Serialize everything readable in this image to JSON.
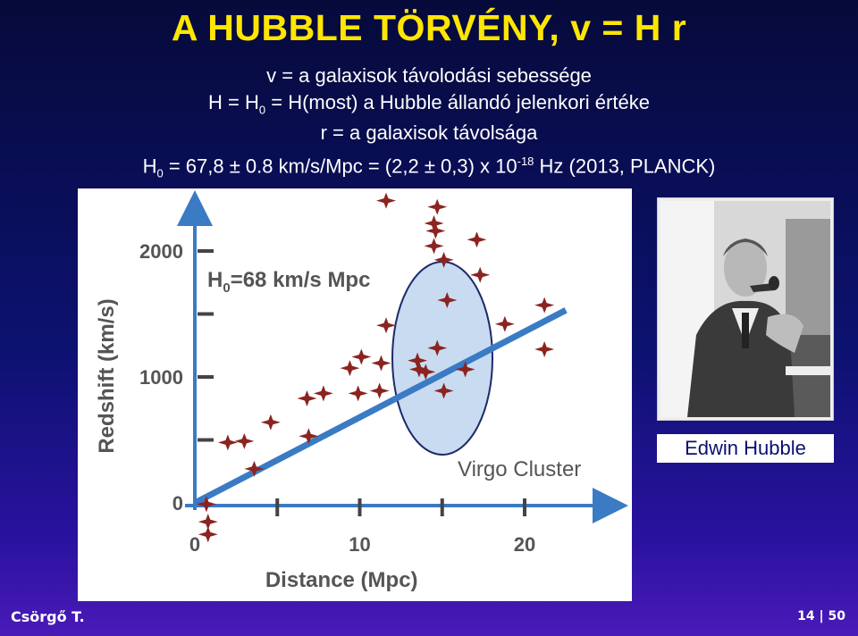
{
  "slide": {
    "title": "A HUBBLE TÖRVÉNY, v = H r",
    "line1": "v = a galaxisok távolodási sebessége",
    "line2": {
      "pre": "H = H",
      "sub": "0",
      "post": " = H(most) a Hubble állandó jelenkori értéke"
    },
    "line3": "r = a galaxisok távolsága",
    "line4": {
      "pre": "H",
      "sub": "0",
      "mid": " = 67,8 ± 0.8 km/s/Mpc = (2,2 ± 0,3) x 10",
      "sup": "-18",
      "post": " Hz  (2013, PLANCK)"
    },
    "photo_caption": "Edwin Hubble",
    "author": "Csörgő T.",
    "page": "14 | 50"
  },
  "colors": {
    "title": "#ffe600",
    "fit_line": "#3a7bc4",
    "points": "#8b2420",
    "cluster_fill": "#c9dbf0",
    "axis": "#555555",
    "text": "#555555"
  },
  "chart_data": {
    "type": "scatter",
    "xlabel": "Distance (Mpc)",
    "ylabel": "Redshift (km/s)",
    "x_tick_labels": [
      "0",
      "10",
      "20"
    ],
    "y_tick_labels": [
      "0",
      "1000",
      "2000"
    ],
    "xlim": [
      0,
      23
    ],
    "ylim": [
      0,
      2300
    ],
    "annotation": {
      "main": "H",
      "sub": "0",
      "rest": "=68 km/s Mpc"
    },
    "cluster_label": "Virgo Cluster",
    "fit_line": {
      "slope": 68,
      "x_range": [
        0,
        22.5
      ]
    },
    "points": [
      {
        "x": 0.7,
        "y": -10
      },
      {
        "x": 0.8,
        "y": -150
      },
      {
        "x": 0.8,
        "y": -250
      },
      {
        "x": 2.0,
        "y": 480
      },
      {
        "x": 3.0,
        "y": 490
      },
      {
        "x": 3.6,
        "y": 270
      },
      {
        "x": 4.6,
        "y": 640
      },
      {
        "x": 6.8,
        "y": 830
      },
      {
        "x": 6.9,
        "y": 530
      },
      {
        "x": 7.8,
        "y": 870
      },
      {
        "x": 9.4,
        "y": 1070
      },
      {
        "x": 10.1,
        "y": 1160
      },
      {
        "x": 9.9,
        "y": 870
      },
      {
        "x": 11.3,
        "y": 1110
      },
      {
        "x": 11.2,
        "y": 890
      },
      {
        "x": 11.6,
        "y": 2400
      },
      {
        "x": 14.7,
        "y": 2350
      },
      {
        "x": 14.5,
        "y": 2220
      },
      {
        "x": 14.6,
        "y": 2160
      },
      {
        "x": 14.5,
        "y": 2040
      },
      {
        "x": 15.1,
        "y": 1930
      },
      {
        "x": 17.1,
        "y": 2090
      },
      {
        "x": 17.3,
        "y": 1810
      },
      {
        "x": 15.3,
        "y": 1610
      },
      {
        "x": 11.6,
        "y": 1410
      },
      {
        "x": 14.7,
        "y": 1230
      },
      {
        "x": 18.8,
        "y": 1420
      },
      {
        "x": 13.5,
        "y": 1130
      },
      {
        "x": 13.6,
        "y": 1060
      },
      {
        "x": 14.0,
        "y": 1040
      },
      {
        "x": 16.4,
        "y": 1060
      },
      {
        "x": 15.1,
        "y": 890
      },
      {
        "x": 21.2,
        "y": 1570
      },
      {
        "x": 21.2,
        "y": 1220
      }
    ]
  }
}
